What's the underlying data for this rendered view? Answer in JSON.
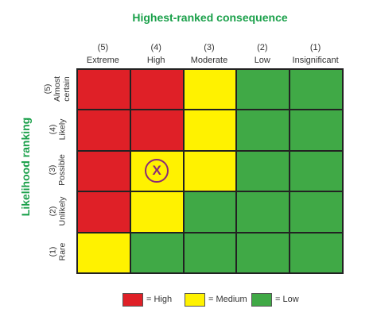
{
  "title": "Highest-ranked consequence",
  "ylabel": "Likelihood ranking",
  "columns": [
    {
      "num": "(5)",
      "label": "Extreme"
    },
    {
      "num": "(4)",
      "label": "High"
    },
    {
      "num": "(3)",
      "label": "Moderate"
    },
    {
      "num": "(2)",
      "label": "Low"
    },
    {
      "num": "(1)",
      "label": "Insignificant"
    }
  ],
  "rows": [
    {
      "num": "(5)",
      "label": "Almost certain",
      "line1": "Almost",
      "line2": "certain"
    },
    {
      "num": "(4)",
      "label": "Likely",
      "line1": "Likely",
      "line2": ""
    },
    {
      "num": "(3)",
      "label": "Possible",
      "line1": "Possible",
      "line2": ""
    },
    {
      "num": "(2)",
      "label": "Unlikely",
      "line1": "Unlikely",
      "line2": ""
    },
    {
      "num": "(1)",
      "label": "Rare",
      "line1": "Rare",
      "line2": ""
    }
  ],
  "matrix": [
    [
      "High",
      "High",
      "Medium",
      "Low",
      "Low"
    ],
    [
      "High",
      "High",
      "Medium",
      "Low",
      "Low"
    ],
    [
      "High",
      "Medium",
      "Medium",
      "Low",
      "Low"
    ],
    [
      "High",
      "Medium",
      "Low",
      "Low",
      "Low"
    ],
    [
      "Medium",
      "Low",
      "Low",
      "Low",
      "Low"
    ]
  ],
  "marker": {
    "text": "X",
    "row": 2,
    "col": 1
  },
  "colors": {
    "High": "#df2027",
    "Medium": "#fff200",
    "Low": "#40a946",
    "marker": "#8a2a78",
    "title": "#1aa04a"
  },
  "legend": [
    {
      "level": "High",
      "text": "= High"
    },
    {
      "level": "Medium",
      "text": "= Medium"
    },
    {
      "level": "Low",
      "text": "= Low"
    }
  ]
}
